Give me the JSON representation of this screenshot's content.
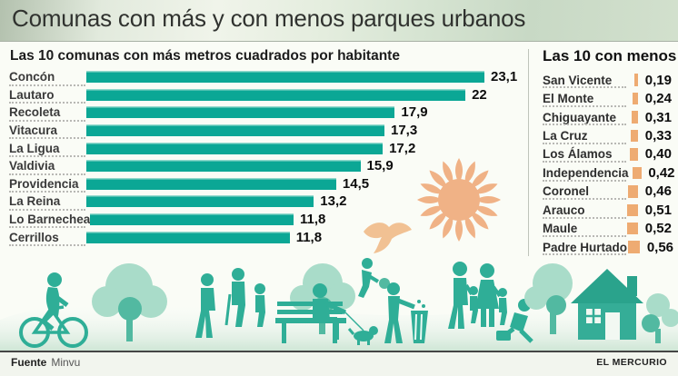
{
  "page_title": "Comunas con más y con menos parques urbanos",
  "left_panel": {
    "title": "Las 10 comunas con más metros cuadrados por habitante"
  },
  "right_panel": {
    "title": "Las 10 con menos"
  },
  "footer": {
    "source_label": "Fuente",
    "source_value": "Minvu",
    "credit": "EL MERCURIO"
  },
  "colors": {
    "bar_teal": "#0ba795",
    "bar_teal_highlight": "#93dacd",
    "bar_orange": "#eeab72",
    "sun_orange": "#f0b286",
    "bird_orange": "#f1c193",
    "figure_teal": "#2fae97",
    "tree_light": "#a9dcc9",
    "tree_mid": "#52b9a1"
  },
  "chart_data": [
    {
      "type": "bar",
      "orientation": "horizontal",
      "title": "Las 10 comunas con más metros cuadrados por habitante",
      "categories": [
        "Concón",
        "Lautaro",
        "Recoleta",
        "Vitacura",
        "La Ligua",
        "Valdivia",
        "Providencia",
        "La Reina",
        "Lo Barnechea",
        "Cerrillos"
      ],
      "values": [
        23.1,
        22,
        17.9,
        17.3,
        17.2,
        15.9,
        14.5,
        13.2,
        11.8,
        11.8
      ],
      "value_labels": [
        "23,1",
        "22",
        "17,9",
        "17,3",
        "17,2",
        "15,9",
        "14,5",
        "13,2",
        "11,8",
        "11,8"
      ],
      "xlim": [
        0,
        23.1
      ],
      "grid": false,
      "legend": false
    },
    {
      "type": "bar",
      "orientation": "horizontal",
      "title": "Las 10 con menos",
      "categories": [
        "San Vicente",
        "El Monte",
        "Chiguayante",
        "La Cruz",
        "Los Álamos",
        "Independencia",
        "Coronel",
        "Arauco",
        "Maule",
        "Padre Hurtado"
      ],
      "values": [
        0.19,
        0.24,
        0.31,
        0.33,
        0.4,
        0.42,
        0.46,
        0.51,
        0.52,
        0.56
      ],
      "value_labels": [
        "0,19",
        "0,24",
        "0,31",
        "0,33",
        "0,40",
        "0,42",
        "0,46",
        "0,51",
        "0,52",
        "0,56"
      ],
      "xlim": [
        0,
        0.56
      ],
      "grid": false,
      "legend": false
    }
  ]
}
